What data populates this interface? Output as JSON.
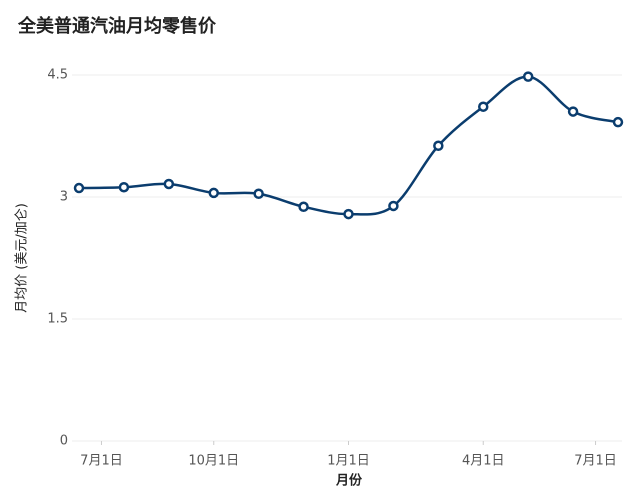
{
  "chart_data": {
    "type": "line",
    "title": "全美普通汽油月均零售价",
    "x_label": "月份",
    "y_label": "月均价 (美元/加仑)",
    "x": [
      0,
      1,
      2,
      3,
      4,
      5,
      6,
      7,
      8,
      9,
      10,
      11,
      12
    ],
    "series": [
      {
        "name": "月均价",
        "color": "#0b3d6e",
        "values": [
          3.11,
          3.12,
          3.16,
          3.05,
          3.04,
          2.88,
          2.79,
          2.89,
          3.63,
          4.11,
          4.48,
          4.05,
          3.92
        ]
      }
    ],
    "xlim": [
      0,
      12
    ],
    "xticks": [
      {
        "value": 0.5,
        "label": "7月1日"
      },
      {
        "value": 3,
        "label": "10月1日"
      },
      {
        "value": 6,
        "label": "1月1日"
      },
      {
        "value": 9,
        "label": "4月1日"
      },
      {
        "value": 11.5,
        "label": "7月1日"
      }
    ],
    "ylim": [
      0,
      4.5
    ],
    "yticks": [
      0,
      1.5,
      3,
      4.5
    ],
    "grid": true
  }
}
